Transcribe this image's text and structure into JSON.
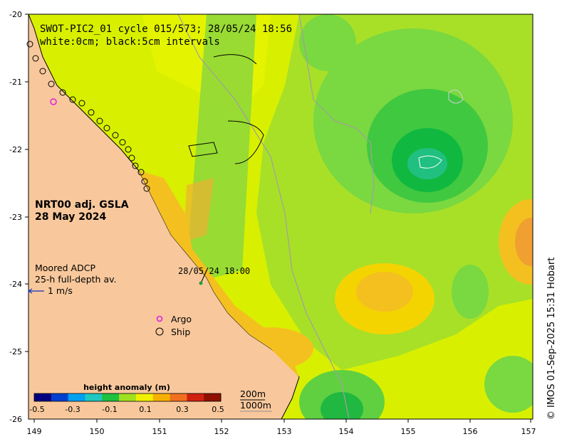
{
  "title": {
    "line1": "SWOT-PIC2_01 cycle 015/573; 28/05/24 18:56",
    "line2": "white:0cm; black:5cm intervals"
  },
  "product": {
    "line1": "NRT00 adj. GSLA",
    "line2": "28 May 2024"
  },
  "adcp": {
    "line1": "Moored ADCP",
    "line2": "25-h full-depth av.",
    "scale": "1 m/s",
    "timestamp": "28/05/24 18:00"
  },
  "legend": {
    "argo": "Argo",
    "ship": "Ship",
    "argo_color": "#e020e0"
  },
  "depth_legend": {
    "shallow": "200m",
    "deep": "1000m"
  },
  "credit": "© IMOS 01-Sep-2025 15:31 Hobart",
  "colorbar": {
    "title": "height anomaly (m)",
    "ticks": [
      "-0.5",
      "-0.3",
      "-0.1",
      "0.1",
      "0.3",
      "0.5"
    ],
    "range": [
      -0.5,
      0.5
    ],
    "colors": [
      "#000080",
      "#0040d0",
      "#00a0f0",
      "#20c8c0",
      "#20c040",
      "#a0e020",
      "#f0f000",
      "#f8b000",
      "#f07020",
      "#d02010",
      "#901000"
    ]
  },
  "axes": {
    "x_ticks": [
      "149",
      "150",
      "151",
      "152",
      "153",
      "154",
      "155",
      "156",
      "157"
    ],
    "y_ticks": [
      "-20",
      "-21",
      "-22",
      "-23",
      "-24",
      "-25",
      "-26"
    ],
    "x_range": [
      149,
      157
    ],
    "y_range": [
      -26,
      -20
    ]
  },
  "colors": {
    "land": "#f8c89c",
    "sea_base": "#a8e028",
    "grid_frame": "#000000"
  }
}
